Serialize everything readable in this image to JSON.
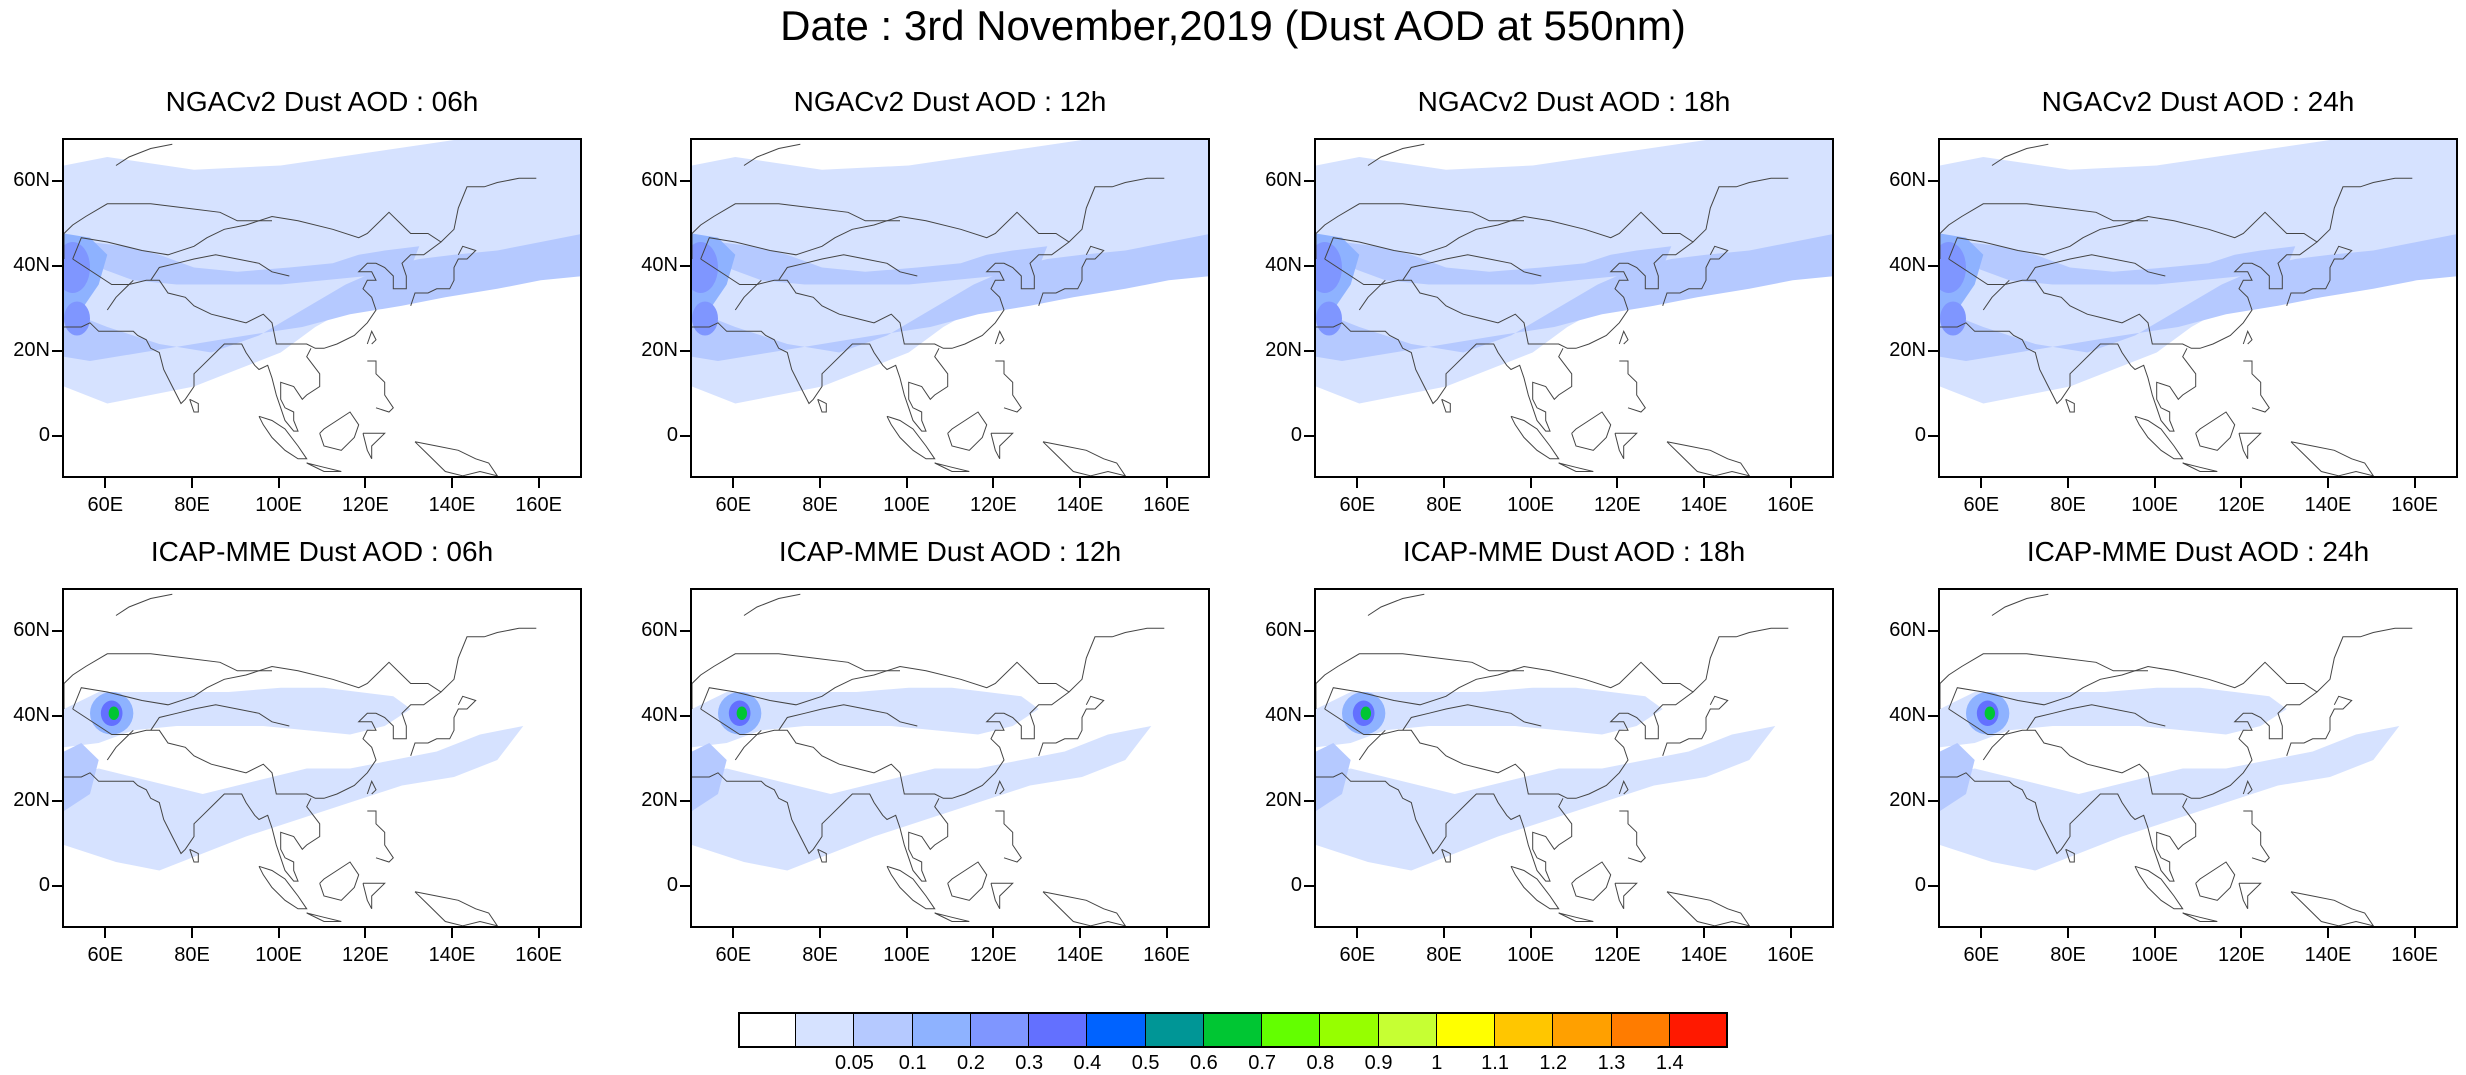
{
  "title": "Date : 3rd November,2019 (Dust AOD at 550nm)",
  "panels": [
    {
      "title": "NGACv2 Dust AOD : 06h",
      "model": "NGAC",
      "t": 6
    },
    {
      "title": "NGACv2 Dust AOD : 12h",
      "model": "NGAC",
      "t": 12
    },
    {
      "title": "NGACv2 Dust AOD : 18h",
      "model": "NGAC",
      "t": 18
    },
    {
      "title": "NGACv2 Dust AOD : 24h",
      "model": "NGAC",
      "t": 24
    },
    {
      "title": "ICAP-MME Dust AOD : 06h",
      "model": "ICAP",
      "t": 6
    },
    {
      "title": "ICAP-MME Dust AOD : 12h",
      "model": "ICAP",
      "t": 12
    },
    {
      "title": "ICAP-MME Dust AOD : 18h",
      "model": "ICAP",
      "t": 18
    },
    {
      "title": "ICAP-MME Dust AOD : 24h",
      "model": "ICAP",
      "t": 24
    }
  ],
  "map": {
    "lon_range": [
      50,
      170
    ],
    "lat_range": [
      -10,
      70
    ],
    "lat_ticks": [
      {
        "v": 60,
        "label": "60N"
      },
      {
        "v": 40,
        "label": "40N"
      },
      {
        "v": 20,
        "label": "20N"
      },
      {
        "v": 0,
        "label": "0"
      }
    ],
    "lon_ticks": [
      {
        "v": 60,
        "label": "60E"
      },
      {
        "v": 80,
        "label": "80E"
      },
      {
        "v": 100,
        "label": "100E"
      },
      {
        "v": 120,
        "label": "120E"
      },
      {
        "v": 140,
        "label": "140E"
      },
      {
        "v": 160,
        "label": "160E"
      }
    ]
  },
  "colorbar": {
    "colors": [
      "#ffffff",
      "#d6e2ff",
      "#b5c9ff",
      "#8eb2ff",
      "#7f96ff",
      "#6370ff",
      "#0063ff",
      "#009696",
      "#00c633",
      "#63ff00",
      "#96ff00",
      "#c6ff33",
      "#ffff00",
      "#ffc600",
      "#ffa000",
      "#ff7c00",
      "#ff1900"
    ],
    "labels": [
      "0.05",
      "0.1",
      "0.2",
      "0.3",
      "0.4",
      "0.5",
      "0.6",
      "0.7",
      "0.8",
      "0.9",
      "1",
      "1.1",
      "1.2",
      "1.3",
      "1.4"
    ]
  }
}
